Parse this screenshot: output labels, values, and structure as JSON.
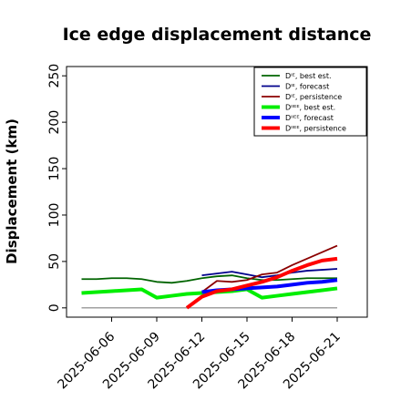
{
  "chart_data": {
    "type": "line",
    "title": "Ice edge displacement distance",
    "y_label": "Displacement (km)",
    "x": [
      "2025-06-04",
      "2025-06-05",
      "2025-06-06",
      "2025-06-07",
      "2025-06-08",
      "2025-06-09",
      "2025-06-10",
      "2025-06-11",
      "2025-06-12",
      "2025-06-13",
      "2025-06-14",
      "2025-06-15",
      "2025-06-16",
      "2025-06-17",
      "2025-06-18",
      "2025-06-19",
      "2025-06-20",
      "2025-06-21"
    ],
    "xlim": [
      "2025-06-03",
      "2025-06-23"
    ],
    "xticks": [
      "2025-06-06",
      "2025-06-09",
      "2025-06-12",
      "2025-06-15",
      "2025-06-18",
      "2025-06-21"
    ],
    "xtick_colors": [
      "#000000",
      "#000000",
      "#228b22",
      "#000000",
      "#000000",
      "#000000"
    ],
    "ylim": [
      -10,
      260
    ],
    "yticks": [
      0,
      50,
      100,
      150,
      200,
      250
    ],
    "legend": "upper right",
    "series": [
      {
        "color": "#808080",
        "width": 1.2,
        "values": [
          0,
          0,
          0,
          0,
          0,
          0,
          0,
          0,
          0,
          0,
          0,
          0,
          0,
          0,
          0,
          0,
          0,
          0
        ]
      },
      {
        "name": "Dᴵᴱ, best est.",
        "color": "#006400",
        "width": 1.8,
        "values": [
          31,
          31,
          32,
          32,
          31,
          28,
          27,
          29,
          32,
          34,
          35,
          32,
          30,
          30,
          31,
          32,
          32,
          32
        ]
      },
      {
        "name": "Dᴵᴱ, forecast",
        "color": "#00008b",
        "width": 1.8,
        "values": [
          null,
          null,
          null,
          null,
          null,
          null,
          null,
          null,
          35,
          37,
          39,
          36,
          33,
          35,
          38,
          40,
          41,
          42
        ]
      },
      {
        "name": "Dᴵᴱ, persistence",
        "color": "#8b0000",
        "width": 1.8,
        "values": [
          null,
          null,
          null,
          null,
          null,
          null,
          null,
          null,
          17,
          29,
          28,
          30,
          36,
          38,
          46,
          53,
          60,
          67
        ]
      },
      {
        "name": "Dᴵᴵᴱᴱ, best est.",
        "color": "#00ee00",
        "width": 4,
        "values": [
          16,
          17,
          18,
          19,
          20,
          11,
          13,
          15,
          16,
          17,
          18,
          20,
          11,
          13,
          15,
          17,
          19,
          21
        ]
      },
      {
        "name": "Dᴵᴵᴱᴱ, forecast",
        "color": "#0000ff",
        "width": 4,
        "values": [
          null,
          null,
          null,
          null,
          null,
          null,
          null,
          null,
          17,
          19,
          20,
          21,
          22,
          23,
          25,
          27,
          28,
          30
        ]
      },
      {
        "name": "Dᴵᴵᴱᴱ, persistence",
        "color": "#ff0000",
        "width": 4,
        "values": [
          null,
          null,
          null,
          null,
          null,
          null,
          null,
          0,
          12,
          18,
          20,
          24,
          28,
          33,
          40,
          46,
          51,
          53
        ]
      }
    ]
  }
}
